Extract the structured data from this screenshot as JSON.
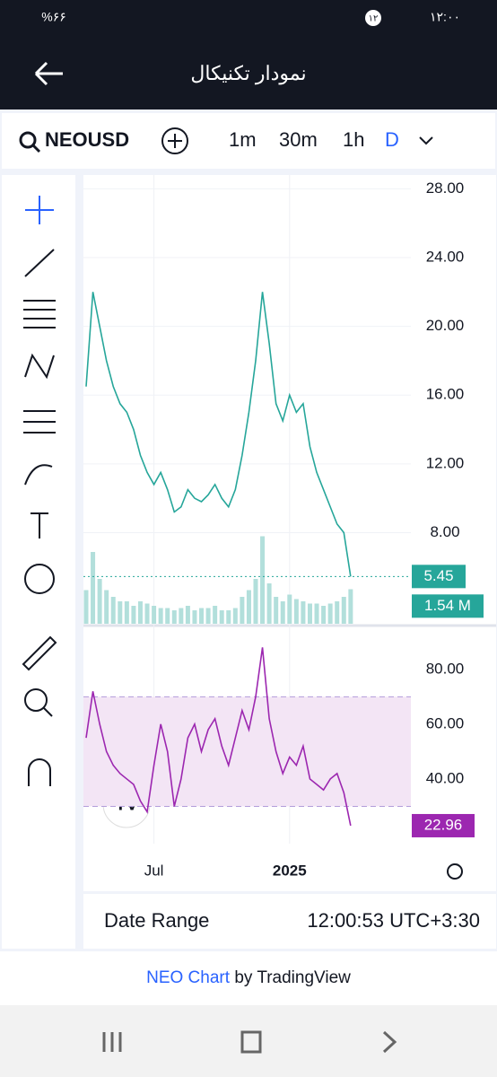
{
  "status": {
    "time": "۱۲:۰۰",
    "battery": "%۶۶",
    "badge": "۱۲"
  },
  "header": {
    "title": "نمودار تکنیکال"
  },
  "toolbar": {
    "symbol": "NEOUSD",
    "intervals": [
      "1m",
      "30m",
      "1h",
      "D"
    ],
    "active": "D"
  },
  "chart_data": {
    "type": "line",
    "categories": [
      null,
      null,
      null,
      null,
      null,
      null,
      null,
      null,
      null,
      null,
      "Jul",
      null,
      null,
      null,
      null,
      null,
      null,
      null,
      null,
      null,
      null,
      null,
      null,
      null,
      null,
      null,
      null,
      null,
      null,
      null,
      "2025",
      null,
      null,
      null,
      null,
      null,
      null,
      null,
      null,
      null
    ],
    "series": [
      {
        "name": "NEOUSD",
        "color": "#26a69a",
        "values": [
          16.5,
          22,
          20,
          18,
          16.5,
          15.5,
          15,
          14,
          12.5,
          11.5,
          10.8,
          11.5,
          10.5,
          9.2,
          9.5,
          10.5,
          10,
          9.8,
          10.2,
          10.8,
          10,
          9.5,
          10.5,
          12.5,
          15,
          18,
          22,
          19,
          15.5,
          14.5,
          16,
          15,
          15.5,
          13,
          11.5,
          10.5,
          9.5,
          8.5,
          8,
          5.45
        ]
      }
    ],
    "ylim": [
      2.7,
      28.8
    ],
    "yticks": [
      {
        "value": 28,
        "label": "28.00"
      },
      {
        "value": 24,
        "label": "24.00"
      },
      {
        "value": 20,
        "label": "20.00"
      },
      {
        "value": 16,
        "label": "16.00"
      },
      {
        "value": 12,
        "label": "12.00"
      },
      {
        "value": 8,
        "label": "8.00"
      }
    ],
    "last_price": {
      "value": 5.45,
      "label": "5.45"
    },
    "volume": {
      "color": "#b2dfdb",
      "ylim": [
        0,
        20
      ],
      "values": [
        1.5,
        3.2,
        2,
        1.5,
        1.2,
        1,
        1,
        0.8,
        1,
        0.9,
        0.8,
        0.7,
        0.7,
        0.6,
        0.7,
        0.8,
        0.6,
        0.7,
        0.7,
        0.8,
        0.6,
        0.6,
        0.7,
        1.2,
        1.5,
        2,
        3.9,
        1.8,
        1.2,
        1,
        1.3,
        1.1,
        1,
        0.9,
        0.9,
        0.8,
        0.9,
        1,
        1.2,
        1.54
      ],
      "last": {
        "value": 1.54,
        "label": "1.54 M"
      }
    },
    "rsi": {
      "color": "#9c27b0",
      "ylim": [
        16.4,
        95
      ],
      "band": [
        30,
        70
      ],
      "yticks": [
        {
          "value": 80,
          "label": "80.00"
        },
        {
          "value": 60,
          "label": "60.00"
        },
        {
          "value": 40,
          "label": "40.00"
        }
      ],
      "values": [
        55,
        72,
        60,
        50,
        45,
        42,
        40,
        38,
        32,
        28,
        45,
        60,
        50,
        30,
        40,
        55,
        60,
        50,
        58,
        62,
        52,
        45,
        55,
        65,
        58,
        70,
        88,
        62,
        50,
        42,
        48,
        45,
        52,
        40,
        38,
        36,
        40,
        42,
        35,
        22.96
      ]
    }
  },
  "bottom": {
    "range": "Date Range",
    "clock": "12:00:53 UTC+3:30"
  },
  "footer": {
    "brand": "NEO Chart",
    "by": "by TradingView"
  }
}
